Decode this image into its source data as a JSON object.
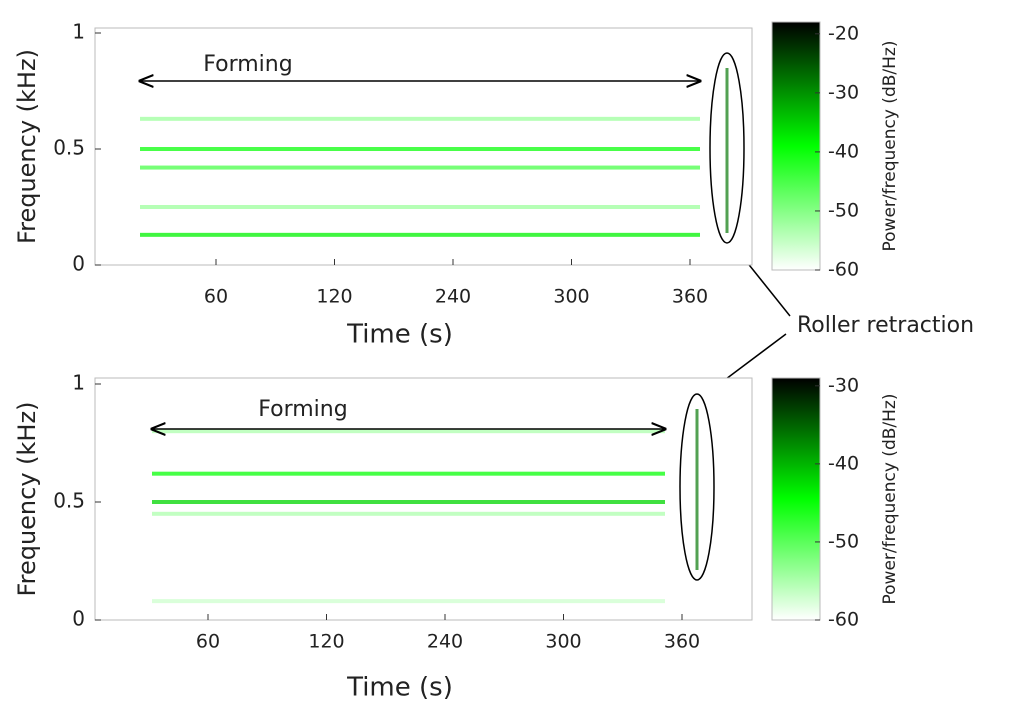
{
  "chart_data": [
    {
      "type": "spectrogram",
      "ylabel": "Frequency (kHz)",
      "xlabel": "Time (s)",
      "x_tick_labels": [
        "60",
        "120",
        "240",
        "300",
        "360"
      ],
      "ylim": [
        0,
        1
      ],
      "yticks": [
        0,
        0.5,
        1
      ],
      "annotation": "Forming",
      "colorbar": {
        "label": "Power/frequency (dB/Hz)",
        "clim": [
          -60,
          -18
        ],
        "ticks": [
          -20,
          -30,
          -40,
          -50,
          -60
        ]
      },
      "bands": [
        {
          "freq": 0.63,
          "level": -52
        },
        {
          "freq": 0.5,
          "level": -40
        },
        {
          "freq": 0.42,
          "level": -45
        },
        {
          "freq": 0.25,
          "level": -52
        },
        {
          "freq": 0.13,
          "level": -38
        }
      ]
    },
    {
      "type": "spectrogram",
      "ylabel": "Frequency (kHz)",
      "xlabel": "Time (s)",
      "x_tick_labels": [
        "60",
        "120",
        "240",
        "300",
        "360"
      ],
      "ylim": [
        0,
        1
      ],
      "yticks": [
        0,
        0.5,
        1
      ],
      "annotation": "Forming",
      "colorbar": {
        "label": "Power/frequency (dB/Hz)",
        "clim": [
          -60,
          -29
        ],
        "ticks": [
          -30,
          -40,
          -50,
          -60
        ]
      },
      "bands": [
        {
          "freq": 0.8,
          "level": -55
        },
        {
          "freq": 0.62,
          "level": -45
        },
        {
          "freq": 0.5,
          "level": -42
        },
        {
          "freq": 0.45,
          "level": -55
        },
        {
          "freq": 0.08,
          "level": -57
        }
      ]
    }
  ],
  "callout": "Roller retraction"
}
